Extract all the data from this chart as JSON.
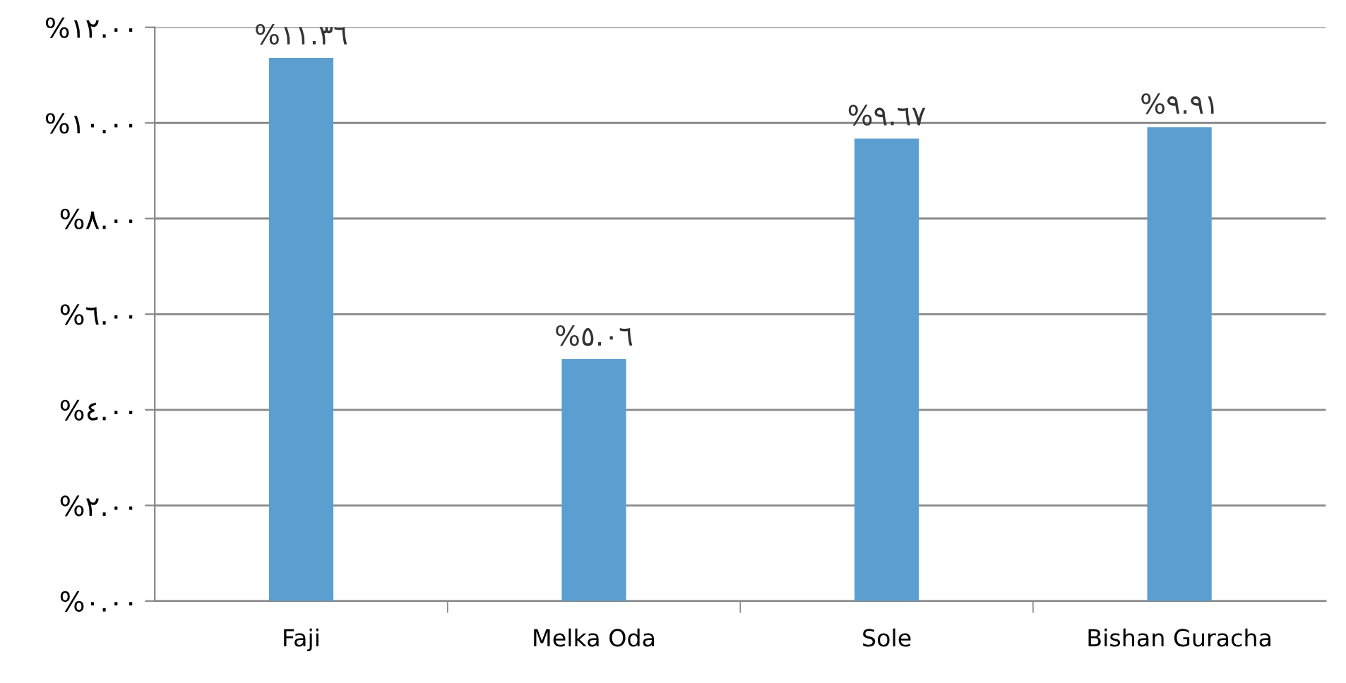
{
  "chart_data": {
    "type": "bar",
    "categories": [
      "Faji",
      "Melka Oda",
      "Sole",
      "Bishan Guracha"
    ],
    "values": [
      11.36,
      5.06,
      9.67,
      9.91
    ],
    "value_labels": [
      "%١١.٣٦",
      "%٥.٠٦",
      "%٩.٦٧",
      "%٩.٩١"
    ],
    "color": "#5b9fd0",
    "ylim": [
      0,
      12
    ],
    "yticks": [
      {
        "value": 0,
        "label": "%٠.٠٠"
      },
      {
        "value": 2,
        "label": "%٢.٠٠"
      },
      {
        "value": 4,
        "label": "%٤.٠٠"
      },
      {
        "value": 6,
        "label": "%٦.٠٠"
      },
      {
        "value": 8,
        "label": "%٨.٠٠"
      },
      {
        "value": 10,
        "label": "%١٠.٠٠"
      },
      {
        "value": 12,
        "label": "%١٢.٠٠"
      }
    ],
    "grid": "y"
  }
}
